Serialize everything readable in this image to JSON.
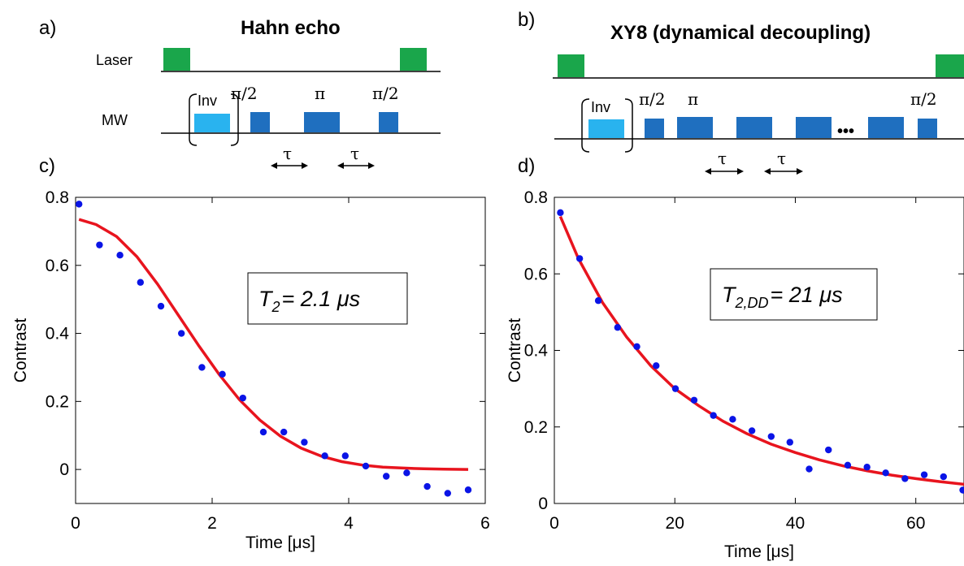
{
  "colors": {
    "laser": "#1aa64b",
    "mw_pulse": "#1f6fbf",
    "inv_pulse": "#29b3ef",
    "fit_line": "#e8141e",
    "data_point": "#0a14e6"
  },
  "panels": {
    "a": {
      "letter": "a)",
      "title": "Hahn echo",
      "laser_label": "Laser",
      "mw_label": "MW",
      "inv_label": "Inv",
      "pulse_labels": [
        "π/2",
        "π",
        "π/2"
      ],
      "tau_labels": [
        "τ",
        "τ"
      ]
    },
    "b": {
      "letter": "b)",
      "title": "XY8 (dynamical decoupling)",
      "inv_label": "Inv",
      "pulse_labels": [
        "π/2",
        "π",
        "π/2"
      ],
      "ellipsis": "•••",
      "tau_labels": [
        "τ",
        "τ"
      ]
    },
    "c": {
      "letter": "c)",
      "annotation_main": "T",
      "annotation_sub": "2",
      "annotation_rest": "= 2.1 μs"
    },
    "d": {
      "letter": "d)",
      "annotation_main": "T",
      "annotation_sub": "2,DD",
      "annotation_rest": "= 21 μs"
    }
  },
  "chart_data": [
    {
      "panel": "c",
      "type": "scatter",
      "xlabel": "Time [μs]",
      "ylabel": "Contrast",
      "xlim": [
        0,
        6
      ],
      "ylim": [
        -0.1,
        0.8
      ],
      "xticks": [
        0,
        2,
        4,
        6
      ],
      "yticks": [
        0,
        0.2,
        0.4,
        0.6,
        0.8
      ],
      "series": [
        {
          "kind": "scatter",
          "x": [
            0.05,
            0.35,
            0.65,
            0.95,
            1.25,
            1.55,
            1.85,
            2.15,
            2.45,
            2.75,
            3.05,
            3.35,
            3.65,
            3.95,
            4.25,
            4.55,
            4.85,
            5.15,
            5.45,
            5.75
          ],
          "y": [
            0.78,
            0.66,
            0.63,
            0.55,
            0.48,
            0.4,
            0.3,
            0.28,
            0.21,
            0.11,
            0.11,
            0.08,
            0.04,
            0.04,
            0.01,
            -0.02,
            -0.01,
            -0.05,
            -0.07,
            -0.06
          ]
        },
        {
          "kind": "line",
          "x": [
            0.05,
            0.3,
            0.6,
            0.9,
            1.2,
            1.5,
            1.8,
            2.1,
            2.4,
            2.7,
            3.0,
            3.3,
            3.6,
            3.9,
            4.2,
            4.5,
            4.8,
            5.1,
            5.4,
            5.75
          ],
          "y": [
            0.735,
            0.72,
            0.685,
            0.625,
            0.545,
            0.455,
            0.365,
            0.28,
            0.205,
            0.145,
            0.098,
            0.063,
            0.039,
            0.023,
            0.013,
            0.007,
            0.004,
            0.002,
            0.001,
            0.0
          ]
        }
      ]
    },
    {
      "panel": "d",
      "type": "scatter",
      "xlabel": "Time [μs]",
      "ylabel": "Contrast",
      "xlim": [
        0,
        68
      ],
      "ylim": [
        0,
        0.8
      ],
      "xticks": [
        0,
        20,
        40,
        60
      ],
      "yticks": [
        0,
        0.2,
        0.4,
        0.6,
        0.8
      ],
      "series": [
        {
          "kind": "scatter",
          "x": [
            1,
            4.2,
            7.3,
            10.5,
            13.7,
            16.9,
            20.1,
            23.2,
            26.4,
            29.6,
            32.8,
            36,
            39.1,
            42.3,
            45.5,
            48.7,
            51.9,
            55,
            58.2,
            61.4,
            64.6,
            67.8
          ],
          "y": [
            0.76,
            0.64,
            0.53,
            0.46,
            0.41,
            0.36,
            0.3,
            0.27,
            0.23,
            0.22,
            0.19,
            0.175,
            0.16,
            0.09,
            0.14,
            0.1,
            0.095,
            0.08,
            0.065,
            0.075,
            0.07,
            0.035
          ]
        },
        {
          "kind": "line",
          "x": [
            1,
            4,
            8,
            12,
            16,
            20,
            24,
            28,
            32,
            36,
            40,
            44,
            48,
            52,
            56,
            60,
            64,
            68
          ],
          "y": [
            0.75,
            0.64,
            0.525,
            0.435,
            0.36,
            0.3,
            0.255,
            0.215,
            0.182,
            0.155,
            0.133,
            0.114,
            0.098,
            0.085,
            0.074,
            0.065,
            0.057,
            0.05
          ]
        }
      ]
    }
  ]
}
